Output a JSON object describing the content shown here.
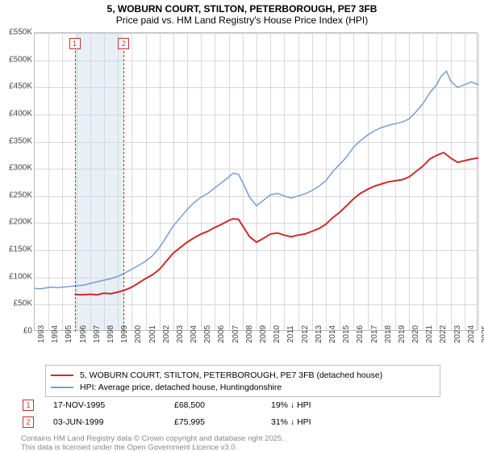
{
  "title": "5, WOBURN COURT, STILTON, PETERBOROUGH, PE7 3FB",
  "subtitle": "Price paid vs. HM Land Registry's House Price Index (HPI)",
  "chart": {
    "type": "line",
    "background_color": "#ffffff",
    "grid_color": "#d8d8d8",
    "border_color": "#bbbbbb",
    "y": {
      "min": 0,
      "max": 550000,
      "step": 50000,
      "labels": [
        "£0",
        "£50K",
        "£100K",
        "£150K",
        "£200K",
        "£250K",
        "£300K",
        "£350K",
        "£400K",
        "£450K",
        "£500K",
        "£550K"
      ],
      "label_fontsize": 10
    },
    "x": {
      "min": 1993,
      "max": 2025,
      "step": 1,
      "labels": [
        "1993",
        "1994",
        "1995",
        "1996",
        "1997",
        "1998",
        "1999",
        "2000",
        "2001",
        "2002",
        "2003",
        "2004",
        "2005",
        "2006",
        "2007",
        "2008",
        "2009",
        "2010",
        "2011",
        "2012",
        "2013",
        "2014",
        "2015",
        "2016",
        "2017",
        "2018",
        "2019",
        "2020",
        "2021",
        "2022",
        "2023",
        "2024",
        "2025"
      ],
      "label_fontsize": 10
    },
    "shade_band": {
      "from_year": 1995.88,
      "to_year": 1999.42,
      "color": "#e8eff7"
    },
    "markers": [
      {
        "id": "1",
        "year": 1995.88,
        "color": "#cb2c2c"
      },
      {
        "id": "2",
        "year": 1999.42,
        "color": "#cb2c2c"
      }
    ],
    "series": [
      {
        "name": "property",
        "color": "#cb2c2c",
        "line_width": 2,
        "points": [
          [
            1995.88,
            68500
          ],
          [
            1996.5,
            68000
          ],
          [
            1997,
            69000
          ],
          [
            1997.5,
            68000
          ],
          [
            1998,
            71000
          ],
          [
            1998.5,
            70000
          ],
          [
            1999,
            73000
          ],
          [
            1999.42,
            75995
          ],
          [
            2000,
            82000
          ],
          [
            2000.5,
            90000
          ],
          [
            2001,
            98000
          ],
          [
            2001.5,
            105000
          ],
          [
            2002,
            115000
          ],
          [
            2002.5,
            130000
          ],
          [
            2003,
            145000
          ],
          [
            2003.5,
            155000
          ],
          [
            2004,
            165000
          ],
          [
            2004.5,
            173000
          ],
          [
            2005,
            180000
          ],
          [
            2005.5,
            185000
          ],
          [
            2006,
            192000
          ],
          [
            2006.5,
            198000
          ],
          [
            2007,
            205000
          ],
          [
            2007.3,
            208000
          ],
          [
            2007.7,
            207000
          ],
          [
            2008,
            195000
          ],
          [
            2008.5,
            175000
          ],
          [
            2009,
            165000
          ],
          [
            2009.5,
            172000
          ],
          [
            2010,
            180000
          ],
          [
            2010.5,
            182000
          ],
          [
            2011,
            178000
          ],
          [
            2011.5,
            175000
          ],
          [
            2012,
            178000
          ],
          [
            2012.5,
            180000
          ],
          [
            2013,
            185000
          ],
          [
            2013.5,
            190000
          ],
          [
            2014,
            198000
          ],
          [
            2014.5,
            210000
          ],
          [
            2015,
            220000
          ],
          [
            2015.5,
            232000
          ],
          [
            2016,
            245000
          ],
          [
            2016.5,
            255000
          ],
          [
            2017,
            262000
          ],
          [
            2017.5,
            268000
          ],
          [
            2018,
            272000
          ],
          [
            2018.5,
            276000
          ],
          [
            2019,
            278000
          ],
          [
            2019.5,
            280000
          ],
          [
            2020,
            285000
          ],
          [
            2020.5,
            295000
          ],
          [
            2021,
            305000
          ],
          [
            2021.5,
            318000
          ],
          [
            2022,
            325000
          ],
          [
            2022.5,
            330000
          ],
          [
            2023,
            320000
          ],
          [
            2023.5,
            312000
          ],
          [
            2024,
            315000
          ],
          [
            2024.5,
            318000
          ],
          [
            2025,
            320000
          ]
        ]
      },
      {
        "name": "hpi",
        "color": "#7a9dd0",
        "line_width": 1.5,
        "points": [
          [
            1993,
            80000
          ],
          [
            1993.4,
            79000
          ],
          [
            1993.8,
            80500
          ],
          [
            1994.2,
            82000
          ],
          [
            1994.6,
            81000
          ],
          [
            1995,
            82000
          ],
          [
            1995.4,
            83000
          ],
          [
            1995.8,
            84500
          ],
          [
            1996.2,
            85000
          ],
          [
            1996.6,
            86000
          ],
          [
            1997,
            89000
          ],
          [
            1997.5,
            92000
          ],
          [
            1998,
            95000
          ],
          [
            1998.5,
            98000
          ],
          [
            1999,
            102000
          ],
          [
            1999.5,
            108000
          ],
          [
            2000,
            115000
          ],
          [
            2000.5,
            122000
          ],
          [
            2001,
            130000
          ],
          [
            2001.5,
            140000
          ],
          [
            2002,
            155000
          ],
          [
            2002.5,
            175000
          ],
          [
            2003,
            195000
          ],
          [
            2003.5,
            210000
          ],
          [
            2004,
            225000
          ],
          [
            2004.5,
            238000
          ],
          [
            2005,
            248000
          ],
          [
            2005.5,
            255000
          ],
          [
            2006,
            265000
          ],
          [
            2006.5,
            275000
          ],
          [
            2007,
            285000
          ],
          [
            2007.3,
            292000
          ],
          [
            2007.7,
            290000
          ],
          [
            2008,
            275000
          ],
          [
            2008.5,
            248000
          ],
          [
            2009,
            232000
          ],
          [
            2009.5,
            242000
          ],
          [
            2010,
            252000
          ],
          [
            2010.5,
            255000
          ],
          [
            2011,
            250000
          ],
          [
            2011.5,
            246000
          ],
          [
            2012,
            250000
          ],
          [
            2012.5,
            254000
          ],
          [
            2013,
            260000
          ],
          [
            2013.5,
            268000
          ],
          [
            2014,
            278000
          ],
          [
            2014.5,
            295000
          ],
          [
            2015,
            308000
          ],
          [
            2015.5,
            322000
          ],
          [
            2016,
            340000
          ],
          [
            2016.5,
            352000
          ],
          [
            2017,
            362000
          ],
          [
            2017.5,
            370000
          ],
          [
            2018,
            376000
          ],
          [
            2018.5,
            380000
          ],
          [
            2019,
            383000
          ],
          [
            2019.5,
            386000
          ],
          [
            2020,
            392000
          ],
          [
            2020.5,
            405000
          ],
          [
            2021,
            420000
          ],
          [
            2021.5,
            440000
          ],
          [
            2022,
            455000
          ],
          [
            2022.3,
            470000
          ],
          [
            2022.7,
            480000
          ],
          [
            2023,
            462000
          ],
          [
            2023.5,
            450000
          ],
          [
            2024,
            455000
          ],
          [
            2024.5,
            460000
          ],
          [
            2025,
            455000
          ]
        ]
      }
    ]
  },
  "legend": {
    "border_color": "#c0c0c0",
    "items": [
      {
        "swatch_color": "#cb2c2c",
        "swatch_height": 2,
        "label": "5, WOBURN COURT, STILTON, PETERBOROUGH, PE7 3FB (detached house)"
      },
      {
        "swatch_color": "#7a9dd0",
        "swatch_height": 2,
        "label": "HPI: Average price, detached house, Huntingdonshire"
      }
    ]
  },
  "sales": [
    {
      "id": "1",
      "date": "17-NOV-1995",
      "price": "£68,500",
      "delta": "19% ↓ HPI",
      "marker_color": "#cb2c2c"
    },
    {
      "id": "2",
      "date": "03-JUN-1999",
      "price": "£75,995",
      "delta": "31% ↓ HPI",
      "marker_color": "#cb2c2c"
    }
  ],
  "footer": {
    "line1": "Contains HM Land Registry data © Crown copyright and database right 2025.",
    "line2": "This data is licensed under the Open Government Licence v3.0."
  }
}
